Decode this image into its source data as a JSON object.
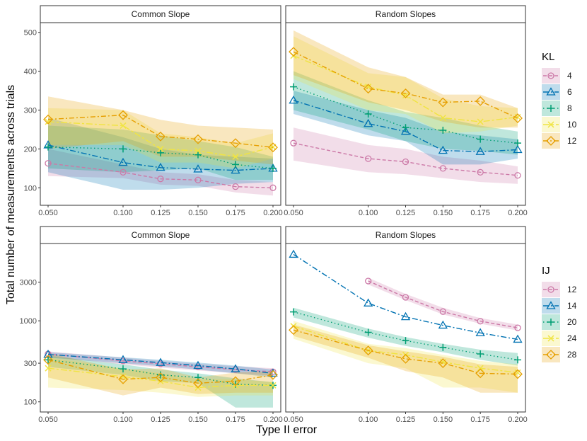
{
  "figure": {
    "ylabel": "Total number of measurements across trials",
    "xlabel": "Type II error"
  },
  "colors": {
    "c1": "#CC79A7",
    "c2": "#0072B2",
    "c3": "#009E73",
    "c4": "#F0E442",
    "c5": "#E69F00"
  },
  "chart_data": [
    {
      "type": "line",
      "facet_row": "top",
      "facet": "Common Slope",
      "legend_title": "KL",
      "x": [
        0.05,
        0.1,
        0.125,
        0.15,
        0.175,
        0.2
      ],
      "x_tick_labels": [
        "0.050",
        "0.100",
        "0.125",
        "0.150",
        "0.175",
        "0.200"
      ],
      "y_scale": "linear",
      "ylim": [
        55,
        525
      ],
      "y_ticks": [
        100,
        200,
        300,
        400,
        500
      ],
      "y_tick_labels": [
        "100",
        "200",
        "300",
        "400",
        "500"
      ],
      "series": [
        {
          "name": "4",
          "values": [
            163,
            140,
            123,
            120,
            103,
            100
          ],
          "lower": [
            130,
            125,
            108,
            105,
            88,
            80
          ],
          "upper": [
            200,
            160,
            140,
            135,
            120,
            115
          ]
        },
        {
          "name": "6",
          "values": [
            210,
            165,
            152,
            148,
            145,
            150
          ],
          "lower": [
            140,
            95,
            95,
            100,
            110,
            115
          ],
          "upper": [
            280,
            230,
            200,
            185,
            180,
            175
          ]
        },
        {
          "name": "8",
          "values": [
            205,
            200,
            190,
            185,
            160,
            150
          ],
          "lower": [
            150,
            140,
            145,
            150,
            120,
            120
          ],
          "upper": [
            260,
            250,
            235,
            220,
            205,
            180
          ]
        },
        {
          "name": "10",
          "values": [
            270,
            260,
            200,
            195,
            180,
            205
          ],
          "lower": [
            210,
            210,
            165,
            165,
            150,
            175
          ],
          "upper": [
            305,
            300,
            240,
            230,
            215,
            240
          ]
        },
        {
          "name": "12",
          "values": [
            276,
            287,
            232,
            225,
            215,
            204
          ],
          "lower": [
            200,
            220,
            180,
            180,
            170,
            160
          ],
          "upper": [
            335,
            300,
            275,
            260,
            255,
            250
          ]
        }
      ]
    },
    {
      "type": "line",
      "facet_row": "top",
      "facet": "Random Slopes",
      "legend_title": "KL",
      "x": [
        0.05,
        0.1,
        0.125,
        0.15,
        0.175,
        0.2
      ],
      "x_tick_labels": [
        "0.050",
        "0.100",
        "0.125",
        "0.150",
        "0.175",
        "0.200"
      ],
      "y_scale": "linear",
      "ylim": [
        55,
        525
      ],
      "y_ticks": [
        100,
        200,
        300,
        400,
        500
      ],
      "y_tick_labels": [
        "100",
        "200",
        "300",
        "400",
        "500"
      ],
      "series": [
        {
          "name": "4",
          "values": [
            215,
            175,
            167,
            150,
            140,
            132
          ],
          "lower": [
            170,
            140,
            135,
            125,
            115,
            110
          ],
          "upper": [
            255,
            210,
            200,
            180,
            170,
            155
          ]
        },
        {
          "name": "6",
          "values": [
            325,
            265,
            245,
            196,
            193,
            198
          ],
          "lower": [
            290,
            235,
            220,
            160,
            160,
            175
          ],
          "upper": [
            350,
            300,
            280,
            245,
            235,
            225
          ]
        },
        {
          "name": "8",
          "values": [
            360,
            290,
            255,
            248,
            225,
            215
          ],
          "lower": [
            300,
            250,
            220,
            200,
            195,
            185
          ],
          "upper": [
            400,
            325,
            295,
            280,
            260,
            245
          ]
        },
        {
          "name": "10",
          "values": [
            440,
            360,
            338,
            280,
            270,
            282
          ],
          "lower": [
            380,
            300,
            290,
            240,
            245,
            260
          ],
          "upper": [
            490,
            395,
            385,
            330,
            310,
            305
          ]
        },
        {
          "name": "12",
          "values": [
            450,
            355,
            343,
            320,
            323,
            279
          ],
          "lower": [
            390,
            320,
            300,
            270,
            255,
            255
          ],
          "upper": [
            505,
            410,
            385,
            340,
            340,
            305
          ]
        }
      ]
    },
    {
      "type": "line",
      "facet_row": "bottom",
      "facet": "Common Slope",
      "legend_title": "IJ",
      "x": [
        0.05,
        0.1,
        0.125,
        0.15,
        0.175,
        0.2
      ],
      "x_tick_labels": [
        "0.050",
        "0.100",
        "0.125",
        "0.150",
        "0.175",
        "0.200"
      ],
      "y_scale": "log",
      "ylim": [
        75,
        9000
      ],
      "y_ticks": [
        100,
        300,
        1000,
        3000
      ],
      "y_tick_labels": [
        "100",
        "300",
        "1000",
        "3000"
      ],
      "series": [
        {
          "name": "12",
          "values": [
            390,
            320,
            295,
            270,
            250,
            235
          ],
          "lower": [
            360,
            290,
            265,
            245,
            225,
            210
          ],
          "upper": [
            420,
            350,
            320,
            295,
            275,
            260
          ]
        },
        {
          "name": "14",
          "values": [
            385,
            330,
            305,
            280,
            255,
            225
          ],
          "lower": [
            350,
            300,
            275,
            250,
            225,
            200
          ],
          "upper": [
            410,
            355,
            330,
            305,
            280,
            250
          ]
        },
        {
          "name": "20",
          "values": [
            330,
            255,
            215,
            200,
            165,
            160
          ],
          "lower": [
            270,
            215,
            180,
            170,
            85,
            85
          ],
          "upper": [
            370,
            290,
            250,
            225,
            195,
            175
          ]
        },
        {
          "name": "24",
          "values": [
            260,
            205,
            180,
            150,
            160,
            160
          ],
          "lower": [
            150,
            140,
            130,
            115,
            120,
            120
          ],
          "upper": [
            350,
            260,
            225,
            190,
            190,
            175
          ]
        },
        {
          "name": "28",
          "values": [
            330,
            190,
            200,
            170,
            180,
            215
          ],
          "lower": [
            200,
            120,
            150,
            125,
            130,
            130
          ],
          "upper": [
            400,
            250,
            260,
            200,
            230,
            240
          ]
        }
      ]
    },
    {
      "type": "line",
      "facet_row": "bottom",
      "facet": "Random Slopes",
      "legend_title": "IJ",
      "x": [
        0.05,
        0.1,
        0.125,
        0.15,
        0.175,
        0.2
      ],
      "x_tick_labels": [
        "0.050",
        "0.100",
        "0.125",
        "0.150",
        "0.175",
        "0.200"
      ],
      "y_scale": "log",
      "ylim": [
        75,
        9000
      ],
      "y_ticks": [
        100,
        300,
        1000,
        3000
      ],
      "y_tick_labels": [
        "100",
        "300",
        "1000",
        "3000"
      ],
      "series": [
        {
          "name": "12",
          "values": [
            null,
            3100,
            1950,
            1300,
            990,
            820
          ],
          "lower": [
            null,
            2800,
            1800,
            1200,
            920,
            760
          ],
          "upper": [
            null,
            3400,
            2150,
            1450,
            1080,
            900
          ]
        },
        {
          "name": "14",
          "values": [
            6600,
            1650,
            1120,
            880,
            710,
            590
          ],
          "lower": [
            null,
            null,
            null,
            null,
            null,
            null
          ],
          "upper": [
            null,
            null,
            null,
            null,
            null,
            null
          ]
        },
        {
          "name": "20",
          "values": [
            1290,
            720,
            570,
            470,
            390,
            330
          ],
          "lower": [
            1100,
            620,
            490,
            410,
            330,
            280
          ],
          "upper": [
            1450,
            800,
            630,
            520,
            440,
            400
          ]
        },
        {
          "name": "24",
          "values": [
            860,
            430,
            380,
            310,
            260,
            230
          ],
          "lower": [
            600,
            300,
            260,
            150,
            150,
            130
          ],
          "upper": [
            1000,
            520,
            460,
            380,
            320,
            290
          ]
        },
        {
          "name": "28",
          "values": [
            770,
            430,
            340,
            300,
            225,
            220
          ],
          "lower": [
            650,
            350,
            240,
            200,
            130,
            130
          ],
          "upper": [
            900,
            500,
            420,
            360,
            290,
            270
          ]
        }
      ]
    }
  ]
}
